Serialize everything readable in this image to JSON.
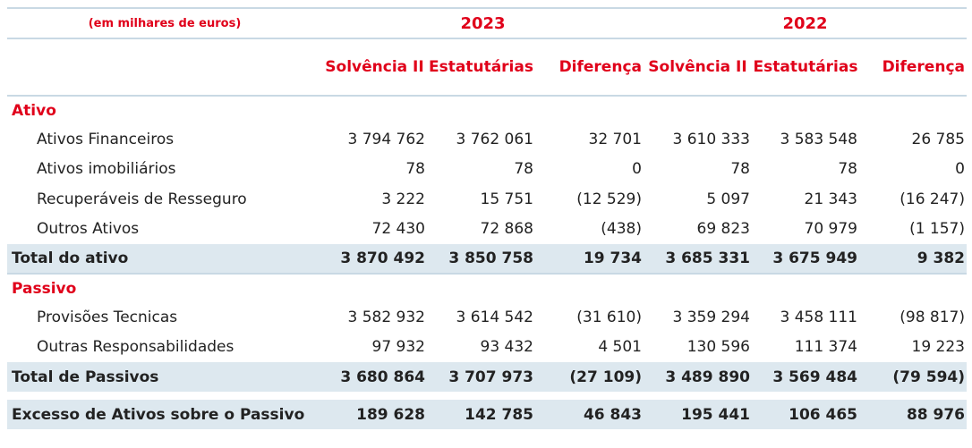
{
  "header": {
    "units": "(em milhares de euros)",
    "year_2023": "2023",
    "year_2022": "2022",
    "columns": [
      "Solvência II",
      "Estatutárias",
      "Diferença",
      "Solvência II",
      "Estatutárias",
      "Diferença"
    ]
  },
  "ativo": {
    "title": "Ativo",
    "rows": [
      {
        "label": "Ativos Financeiros",
        "values": [
          "3 794 762",
          "3 762 061",
          "32 701",
          "3 610 333",
          "3 583 548",
          "26 785"
        ]
      },
      {
        "label": "Ativos imobiliários",
        "values": [
          "78",
          "78",
          "0",
          "78",
          "78",
          "0"
        ]
      },
      {
        "label": "Recuperáveis de Resseguro",
        "values": [
          "3 222",
          "15 751",
          "(12 529)",
          "5 097",
          "21 343",
          "(16 247)"
        ]
      },
      {
        "label": "Outros Ativos",
        "values": [
          "72 430",
          "72 868",
          "(438)",
          "69 823",
          "70 979",
          "(1 157)"
        ]
      }
    ],
    "total": {
      "label": "Total do ativo",
      "values": [
        "3 870 492",
        "3 850 758",
        "19 734",
        "3 685 331",
        "3 675 949",
        "9 382"
      ]
    }
  },
  "passivo": {
    "title": "Passivo",
    "rows": [
      {
        "label": "Provisões Tecnicas",
        "values": [
          "3 582 932",
          "3 614 542",
          "(31 610)",
          "3 359 294",
          "3 458 111",
          "(98 817)"
        ]
      },
      {
        "label": "Outras Responsabilidades",
        "values": [
          "97 932",
          "93 432",
          "4 501",
          "130 596",
          "111 374",
          "19 223"
        ]
      }
    ],
    "total": {
      "label": "Total de Passivos",
      "values": [
        "3 680 864",
        "3 707 973",
        "(27 109)",
        "3 489 890",
        "3 569 484",
        "(79 594)"
      ]
    }
  },
  "excess": {
    "label": "Excesso de Ativos sobre o Passivo",
    "values": [
      "189 628",
      "142 785",
      "46 843",
      "195 441",
      "106 465",
      "88 976"
    ]
  }
}
